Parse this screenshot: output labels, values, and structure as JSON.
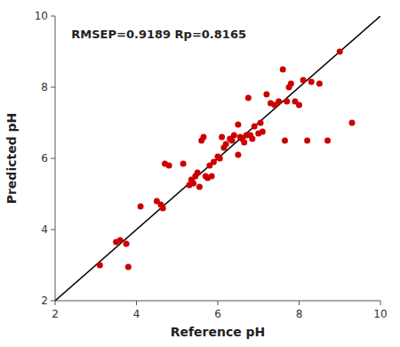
{
  "chart_data": {
    "type": "scatter",
    "xlabel": "Reference pH",
    "ylabel": "Predicted pH",
    "annotations": [
      "RMSEP=0.9189 Rp=0.8165"
    ],
    "x": [
      3.1,
      3.5,
      3.6,
      3.75,
      3.8,
      4.1,
      4.5,
      4.6,
      4.65,
      4.7,
      4.8,
      5.15,
      5.3,
      5.35,
      5.4,
      5.45,
      5.5,
      5.55,
      5.6,
      5.65,
      5.7,
      5.75,
      5.8,
      5.85,
      5.9,
      6.0,
      6.05,
      6.1,
      6.15,
      6.2,
      6.3,
      6.35,
      6.4,
      6.5,
      6.5,
      6.55,
      6.6,
      6.65,
      6.7,
      6.75,
      6.8,
      6.85,
      6.9,
      7.0,
      7.05,
      7.1,
      7.2,
      7.3,
      7.4,
      7.5,
      7.6,
      7.65,
      7.7,
      7.75,
      7.8,
      7.9,
      8.0,
      8.1,
      8.2,
      8.3,
      8.5,
      8.7,
      9.0,
      9.3
    ],
    "values": [
      3.0,
      3.65,
      3.7,
      3.6,
      2.95,
      4.65,
      4.8,
      4.7,
      4.6,
      5.85,
      5.8,
      5.85,
      5.25,
      5.4,
      5.3,
      5.5,
      5.6,
      5.2,
      6.5,
      6.6,
      5.5,
      5.45,
      5.8,
      5.5,
      5.9,
      6.05,
      6.0,
      6.6,
      6.3,
      6.4,
      6.55,
      6.5,
      6.65,
      6.1,
      6.95,
      6.6,
      6.55,
      6.45,
      6.65,
      7.7,
      6.65,
      6.55,
      6.9,
      6.7,
      7.0,
      6.75,
      7.8,
      7.55,
      7.5,
      7.6,
      8.5,
      6.5,
      7.6,
      8.0,
      8.1,
      7.6,
      7.5,
      8.2,
      6.5,
      8.15,
      8.1,
      6.5,
      9.0,
      7.0
    ],
    "color": "#cc0000",
    "xlim": [
      2,
      10
    ],
    "ylim": [
      2,
      10
    ],
    "xticks": [
      2,
      4,
      6,
      8,
      10
    ],
    "yticks": [
      2,
      4,
      6,
      8,
      10
    ],
    "grid": false
  }
}
